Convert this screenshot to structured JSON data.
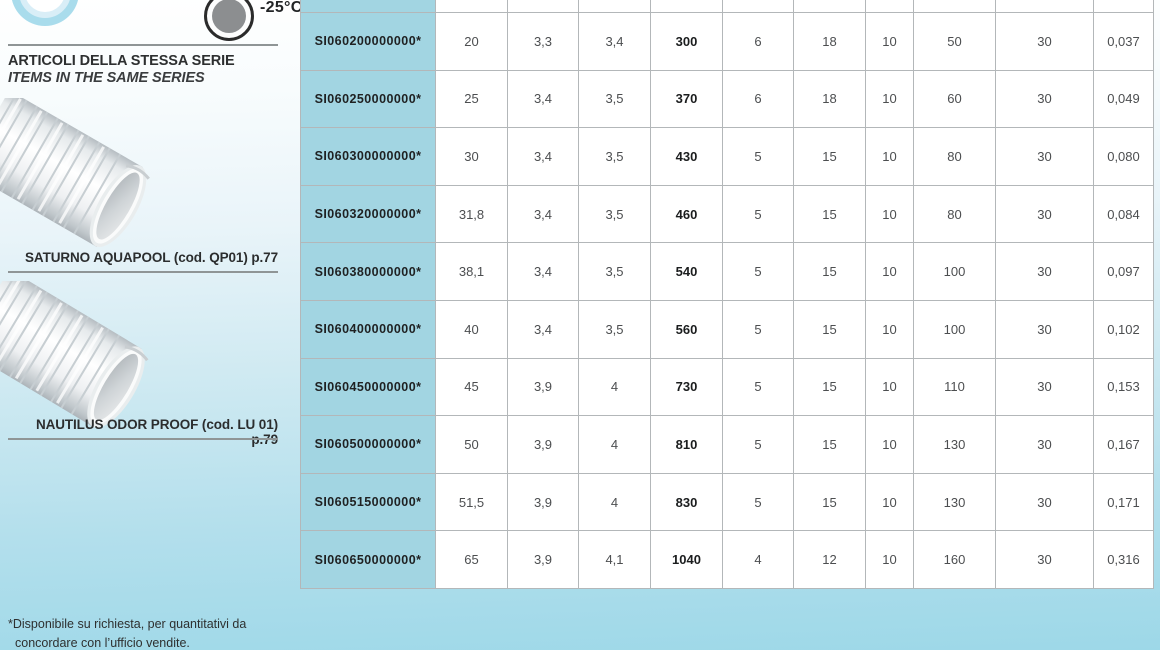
{
  "page": {
    "temp_label": "-25°C",
    "series_heading_it": "ARTICOLI DELLA STESSA SERIE",
    "series_heading_en": "ITEMS IN THE SAME SERIES",
    "products": [
      {
        "caption": "SATURNO AQUAPOOL (cod. QP01) p.77"
      },
      {
        "caption": "NAUTILUS ODOR PROOF (cod. LU 01) p.79"
      }
    ],
    "footnote_line1": "*Disponibile su richiesta, per quantitativi da",
    "footnote_line2": "concordare con l’ufficio vendite.",
    "icons": {
      "pool_icon": "partially-cropped blue ring icon",
      "temp_icon": "temperature-resistance circle icon"
    }
  },
  "table": {
    "partial_top_row": true,
    "bold_value_index": 3,
    "rows": [
      {
        "code": "SI060200000000*",
        "values": [
          "20",
          "3,3",
          "3,4",
          "300",
          "6",
          "18",
          "10",
          "50",
          "30",
          "0,037"
        ]
      },
      {
        "code": "SI060250000000*",
        "values": [
          "25",
          "3,4",
          "3,5",
          "370",
          "6",
          "18",
          "10",
          "60",
          "30",
          "0,049"
        ]
      },
      {
        "code": "SI060300000000*",
        "values": [
          "30",
          "3,4",
          "3,5",
          "430",
          "5",
          "15",
          "10",
          "80",
          "30",
          "0,080"
        ]
      },
      {
        "code": "SI060320000000*",
        "values": [
          "31,8",
          "3,4",
          "3,5",
          "460",
          "5",
          "15",
          "10",
          "80",
          "30",
          "0,084"
        ]
      },
      {
        "code": "SI060380000000*",
        "values": [
          "38,1",
          "3,4",
          "3,5",
          "540",
          "5",
          "15",
          "10",
          "100",
          "30",
          "0,097"
        ]
      },
      {
        "code": "SI060400000000*",
        "values": [
          "40",
          "3,4",
          "3,5",
          "560",
          "5",
          "15",
          "10",
          "100",
          "30",
          "0,102"
        ]
      },
      {
        "code": "SI060450000000*",
        "values": [
          "45",
          "3,9",
          "4",
          "730",
          "5",
          "15",
          "10",
          "110",
          "30",
          "0,153"
        ]
      },
      {
        "code": "SI060500000000*",
        "values": [
          "50",
          "3,9",
          "4",
          "810",
          "5",
          "15",
          "10",
          "130",
          "30",
          "0,167"
        ]
      },
      {
        "code": "SI060515000000*",
        "values": [
          "51,5",
          "3,9",
          "4",
          "830",
          "5",
          "15",
          "10",
          "130",
          "30",
          "0,171"
        ]
      },
      {
        "code": "SI060650000000*",
        "values": [
          "65",
          "3,9",
          "4,1",
          "1040",
          "4",
          "12",
          "10",
          "160",
          "30",
          "0,316"
        ]
      }
    ]
  },
  "colors": {
    "code-cell-blue": "#a2d5e2",
    "accent-blue": "#a9dcec",
    "grid-line": "#b3b7b9",
    "page-bottom-blue": "#9dd8e8"
  }
}
